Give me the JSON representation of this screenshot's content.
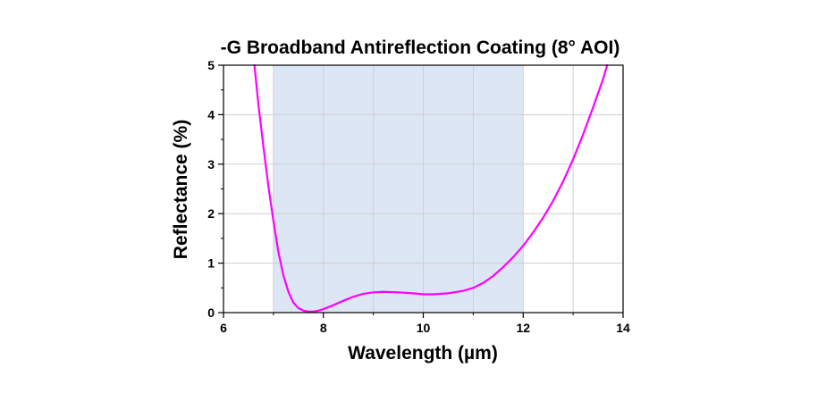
{
  "chart_data": {
    "type": "line",
    "title": "-G Broadband Antireflection Coating (8° AOI)",
    "xlabel": "Wavelength (µm)",
    "ylabel": "Reflectance (%)",
    "xlim": [
      6,
      14
    ],
    "ylim": [
      0,
      5
    ],
    "xticks": [
      "6",
      "8",
      "10",
      "12",
      "14"
    ],
    "yticks": [
      "0",
      "1",
      "2",
      "3",
      "4",
      "5"
    ],
    "grid": true,
    "shaded_band": {
      "x_start": 7,
      "x_end": 12,
      "color": "#dde6f5"
    },
    "series": [
      {
        "name": "Reflectance",
        "color": "#ff00ff",
        "x": [
          6.62,
          6.7,
          6.8,
          6.9,
          7.0,
          7.1,
          7.2,
          7.3,
          7.4,
          7.5,
          7.6,
          7.7,
          7.8,
          7.9,
          8.0,
          8.2,
          8.4,
          8.6,
          8.8,
          9.0,
          9.2,
          9.5,
          9.8,
          10.0,
          10.2,
          10.5,
          10.8,
          11.0,
          11.2,
          11.4,
          11.6,
          11.8,
          12.0,
          12.2,
          12.4,
          12.6,
          12.8,
          13.0,
          13.2,
          13.4,
          13.6,
          13.68
        ],
        "y": [
          5.0,
          4.2,
          3.35,
          2.55,
          1.85,
          1.22,
          0.75,
          0.42,
          0.2,
          0.09,
          0.04,
          0.02,
          0.02,
          0.04,
          0.07,
          0.15,
          0.24,
          0.32,
          0.38,
          0.41,
          0.42,
          0.41,
          0.39,
          0.37,
          0.37,
          0.39,
          0.44,
          0.5,
          0.6,
          0.74,
          0.92,
          1.12,
          1.35,
          1.62,
          1.92,
          2.26,
          2.65,
          3.1,
          3.6,
          4.15,
          4.72,
          5.0
        ]
      }
    ]
  }
}
